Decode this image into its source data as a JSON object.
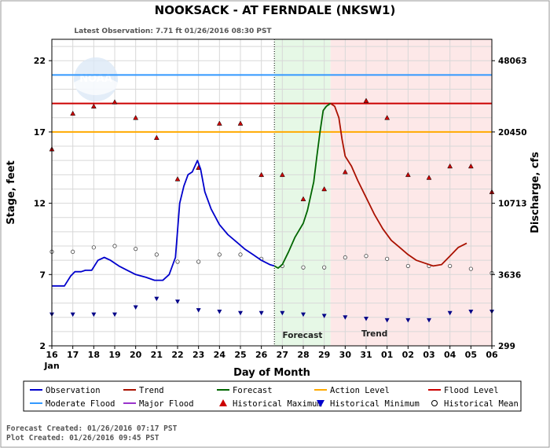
{
  "chart_data": {
    "type": "line",
    "title": "NOOKSACK - AT FERNDALE  (NKSW1)",
    "subtitle": "Latest Observation: 7.71 ft 01/26/2016 08:30 PST",
    "xlabel": "Day of Month",
    "ylabel": "Stage, feet",
    "ylabel_right": "Discharge, cfs",
    "logo_text": "NOAA",
    "x_ticks": [
      "16",
      "17",
      "18",
      "19",
      "20",
      "21",
      "22",
      "23",
      "24",
      "25",
      "26",
      "27",
      "28",
      "29",
      "30",
      "31",
      "01",
      "02",
      "03",
      "04",
      "05",
      "06"
    ],
    "x_month_label": "Jan",
    "xlim": [
      16,
      37
    ],
    "ylim": [
      2,
      23.5
    ],
    "y_ticks": [
      2,
      7,
      12,
      17,
      22
    ],
    "y_ticks_right": [
      "299",
      "3636",
      "10713",
      "20450",
      "48063"
    ],
    "grid": true,
    "forecast_start": 26.62,
    "trend_start": 29.3,
    "region_labels": {
      "forecast": "Forecast",
      "trend": "Trend"
    },
    "thresholds": [
      {
        "name": "Moderate Flood",
        "value": 21.0,
        "color": "#3399ff"
      },
      {
        "name": "Flood Level",
        "value": 19.0,
        "color": "#cc0000"
      },
      {
        "name": "Action Level",
        "value": 17.0,
        "color": "#ffaa00"
      }
    ],
    "series": [
      {
        "name": "Observation",
        "color": "#0000cc",
        "points": [
          [
            16.0,
            6.2
          ],
          [
            16.6,
            6.2
          ],
          [
            16.9,
            6.9
          ],
          [
            17.1,
            7.2
          ],
          [
            17.4,
            7.2
          ],
          [
            17.6,
            7.3
          ],
          [
            17.9,
            7.3
          ],
          [
            18.2,
            8.0
          ],
          [
            18.5,
            8.2
          ],
          [
            18.8,
            8.0
          ],
          [
            19.2,
            7.6
          ],
          [
            19.6,
            7.3
          ],
          [
            20.0,
            7.0
          ],
          [
            20.5,
            6.8
          ],
          [
            20.9,
            6.6
          ],
          [
            21.3,
            6.6
          ],
          [
            21.6,
            7.0
          ],
          [
            21.9,
            8.2
          ],
          [
            22.1,
            12.0
          ],
          [
            22.3,
            13.2
          ],
          [
            22.5,
            14.0
          ],
          [
            22.7,
            14.2
          ],
          [
            22.95,
            15.0
          ],
          [
            23.1,
            14.4
          ],
          [
            23.3,
            12.8
          ],
          [
            23.6,
            11.6
          ],
          [
            24.0,
            10.5
          ],
          [
            24.4,
            9.8
          ],
          [
            24.8,
            9.3
          ],
          [
            25.2,
            8.8
          ],
          [
            25.6,
            8.4
          ],
          [
            26.0,
            8.0
          ],
          [
            26.4,
            7.7
          ],
          [
            26.62,
            7.6
          ]
        ]
      },
      {
        "name": "Forecast",
        "color": "#006600",
        "points": [
          [
            26.62,
            7.6
          ],
          [
            26.8,
            7.45
          ],
          [
            27.0,
            7.7
          ],
          [
            27.3,
            8.6
          ],
          [
            27.6,
            9.6
          ],
          [
            28.0,
            10.6
          ],
          [
            28.2,
            11.5
          ],
          [
            28.5,
            13.5
          ],
          [
            28.65,
            15.3
          ],
          [
            28.8,
            17.0
          ],
          [
            28.95,
            18.5
          ],
          [
            29.1,
            18.8
          ],
          [
            29.3,
            19.0
          ]
        ]
      },
      {
        "name": "Trend",
        "color": "#aa1100",
        "points": [
          [
            29.3,
            19.0
          ],
          [
            29.5,
            18.8
          ],
          [
            29.7,
            18.0
          ],
          [
            29.85,
            16.5
          ],
          [
            30.0,
            15.3
          ],
          [
            30.3,
            14.6
          ],
          [
            30.6,
            13.6
          ],
          [
            31.0,
            12.4
          ],
          [
            31.4,
            11.2
          ],
          [
            31.8,
            10.2
          ],
          [
            32.2,
            9.4
          ],
          [
            32.6,
            8.9
          ],
          [
            33.0,
            8.4
          ],
          [
            33.4,
            8.0
          ],
          [
            33.8,
            7.8
          ],
          [
            34.2,
            7.6
          ],
          [
            34.6,
            7.7
          ],
          [
            35.0,
            8.3
          ],
          [
            35.4,
            8.9
          ],
          [
            35.8,
            9.2
          ]
        ]
      }
    ],
    "hist_max": [
      [
        16.0,
        15.8
      ],
      [
        17.0,
        18.3
      ],
      [
        18.0,
        18.8
      ],
      [
        19.0,
        19.1
      ],
      [
        20.0,
        18.0
      ],
      [
        21.0,
        16.6
      ],
      [
        22.0,
        13.7
      ],
      [
        23.0,
        14.5
      ],
      [
        24.0,
        17.6
      ],
      [
        25.0,
        17.6
      ],
      [
        26.0,
        14.0
      ],
      [
        27.0,
        14.0
      ],
      [
        28.0,
        12.3
      ],
      [
        29.0,
        13.0
      ],
      [
        30.0,
        14.2
      ],
      [
        31.0,
        19.2
      ],
      [
        32.0,
        18.0
      ],
      [
        33.0,
        14.0
      ],
      [
        34.0,
        13.8
      ],
      [
        35.0,
        14.6
      ],
      [
        36.0,
        14.6
      ],
      [
        37.0,
        12.8
      ]
    ],
    "hist_min": [
      [
        16.0,
        4.2
      ],
      [
        17.0,
        4.2
      ],
      [
        18.0,
        4.2
      ],
      [
        19.0,
        4.2
      ],
      [
        20.0,
        4.7
      ],
      [
        21.0,
        5.3
      ],
      [
        22.0,
        5.1
      ],
      [
        23.0,
        4.5
      ],
      [
        24.0,
        4.4
      ],
      [
        25.0,
        4.3
      ],
      [
        26.0,
        4.3
      ],
      [
        27.0,
        4.3
      ],
      [
        28.0,
        4.2
      ],
      [
        29.0,
        4.1
      ],
      [
        30.0,
        4.0
      ],
      [
        31.0,
        3.9
      ],
      [
        32.0,
        3.8
      ],
      [
        33.0,
        3.8
      ],
      [
        34.0,
        3.8
      ],
      [
        35.0,
        4.3
      ],
      [
        36.0,
        4.4
      ],
      [
        37.0,
        4.4
      ]
    ],
    "hist_mean": [
      [
        16.0,
        8.6
      ],
      [
        17.0,
        8.6
      ],
      [
        18.0,
        8.9
      ],
      [
        19.0,
        9.0
      ],
      [
        20.0,
        8.8
      ],
      [
        21.0,
        8.4
      ],
      [
        22.0,
        7.9
      ],
      [
        23.0,
        7.9
      ],
      [
        24.0,
        8.4
      ],
      [
        25.0,
        8.4
      ],
      [
        26.0,
        8.1
      ],
      [
        27.0,
        7.6
      ],
      [
        28.0,
        7.5
      ],
      [
        29.0,
        7.5
      ],
      [
        30.0,
        8.2
      ],
      [
        31.0,
        8.3
      ],
      [
        32.0,
        8.1
      ],
      [
        33.0,
        7.6
      ],
      [
        34.0,
        7.6
      ],
      [
        35.0,
        7.6
      ],
      [
        36.0,
        7.4
      ],
      [
        37.0,
        7.1
      ]
    ],
    "legend": [
      {
        "label": "Observation",
        "kind": "line",
        "color": "#0000cc"
      },
      {
        "label": "Trend",
        "kind": "line",
        "color": "#aa1100"
      },
      {
        "label": "Forecast",
        "kind": "line",
        "color": "#006600"
      },
      {
        "label": "Action Level",
        "kind": "line",
        "color": "#ffaa00"
      },
      {
        "label": "Flood Level",
        "kind": "line",
        "color": "#cc0000"
      },
      {
        "label": "Moderate Flood",
        "kind": "line",
        "color": "#3399ff"
      },
      {
        "label": "Major Flood",
        "kind": "line",
        "color": "#9933cc"
      },
      {
        "label": "Historical Maximum",
        "kind": "tri-up",
        "color": "#cc0000"
      },
      {
        "label": "Historical Minimum",
        "kind": "tri-down",
        "color": "#0000cc"
      },
      {
        "label": "Historical Mean",
        "kind": "circle",
        "color": "#000000"
      }
    ]
  },
  "footer": {
    "forecast_created": "Forecast Created: 01/26/2016 07:17 PST",
    "plot_created": "Plot Created: 01/26/2016 09:45 PST"
  }
}
